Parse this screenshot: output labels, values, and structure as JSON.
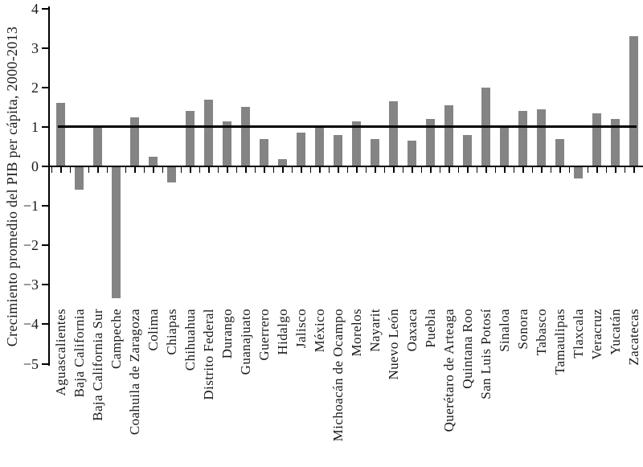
{
  "chart_data": {
    "type": "bar",
    "ylabel": "Crecimiento promedio del PIB per cápita, 2000-2013",
    "ylim": [
      -5,
      4
    ],
    "grid": false,
    "bar_color": "#848484",
    "axis_color": "#000000",
    "reference_line_y": 1,
    "yticks": [
      {
        "value": 4,
        "label": "4"
      },
      {
        "value": 3,
        "label": "3"
      },
      {
        "value": 2,
        "label": "2"
      },
      {
        "value": 1,
        "label": "1"
      },
      {
        "value": 0,
        "label": "0"
      },
      {
        "value": -1,
        "label": "−1"
      },
      {
        "value": -2,
        "label": "−2"
      },
      {
        "value": -3,
        "label": "−3"
      },
      {
        "value": -4,
        "label": "−4"
      },
      {
        "value": -5,
        "label": "−5"
      }
    ],
    "categories": [
      "Aguascalientes",
      "Baja California",
      "Baja California Sur",
      "Campeche",
      "Coahuila de Zaragoza",
      "Colima",
      "Chiapas",
      "Chihuahua",
      "Distrito Federal",
      "Durango",
      "Guanajuato",
      "Guerrero",
      "Hidalgo",
      "Jalisco",
      "México",
      "Michoacán de Ocampo",
      "Morelos",
      "Nayarit",
      "Nuevo León",
      "Oaxaca",
      "Puebla",
      "Querétaro de Arteaga",
      "Quintana Roo",
      "San Luis Potosí",
      "Sinaloa",
      "Sonora",
      "Tabasco",
      "Tamaulipas",
      "Tlaxcala",
      "Veracruz",
      "Yucatán",
      "Zacatecas"
    ],
    "values": [
      1.6,
      -0.6,
      1.0,
      -3.35,
      1.25,
      0.25,
      -0.4,
      1.4,
      1.7,
      1.15,
      1.5,
      0.7,
      0.18,
      0.85,
      1.0,
      0.8,
      1.15,
      0.7,
      1.65,
      0.65,
      1.2,
      1.55,
      0.8,
      2.0,
      1.0,
      1.4,
      1.45,
      0.7,
      -0.3,
      1.35,
      1.2,
      3.3
    ]
  }
}
